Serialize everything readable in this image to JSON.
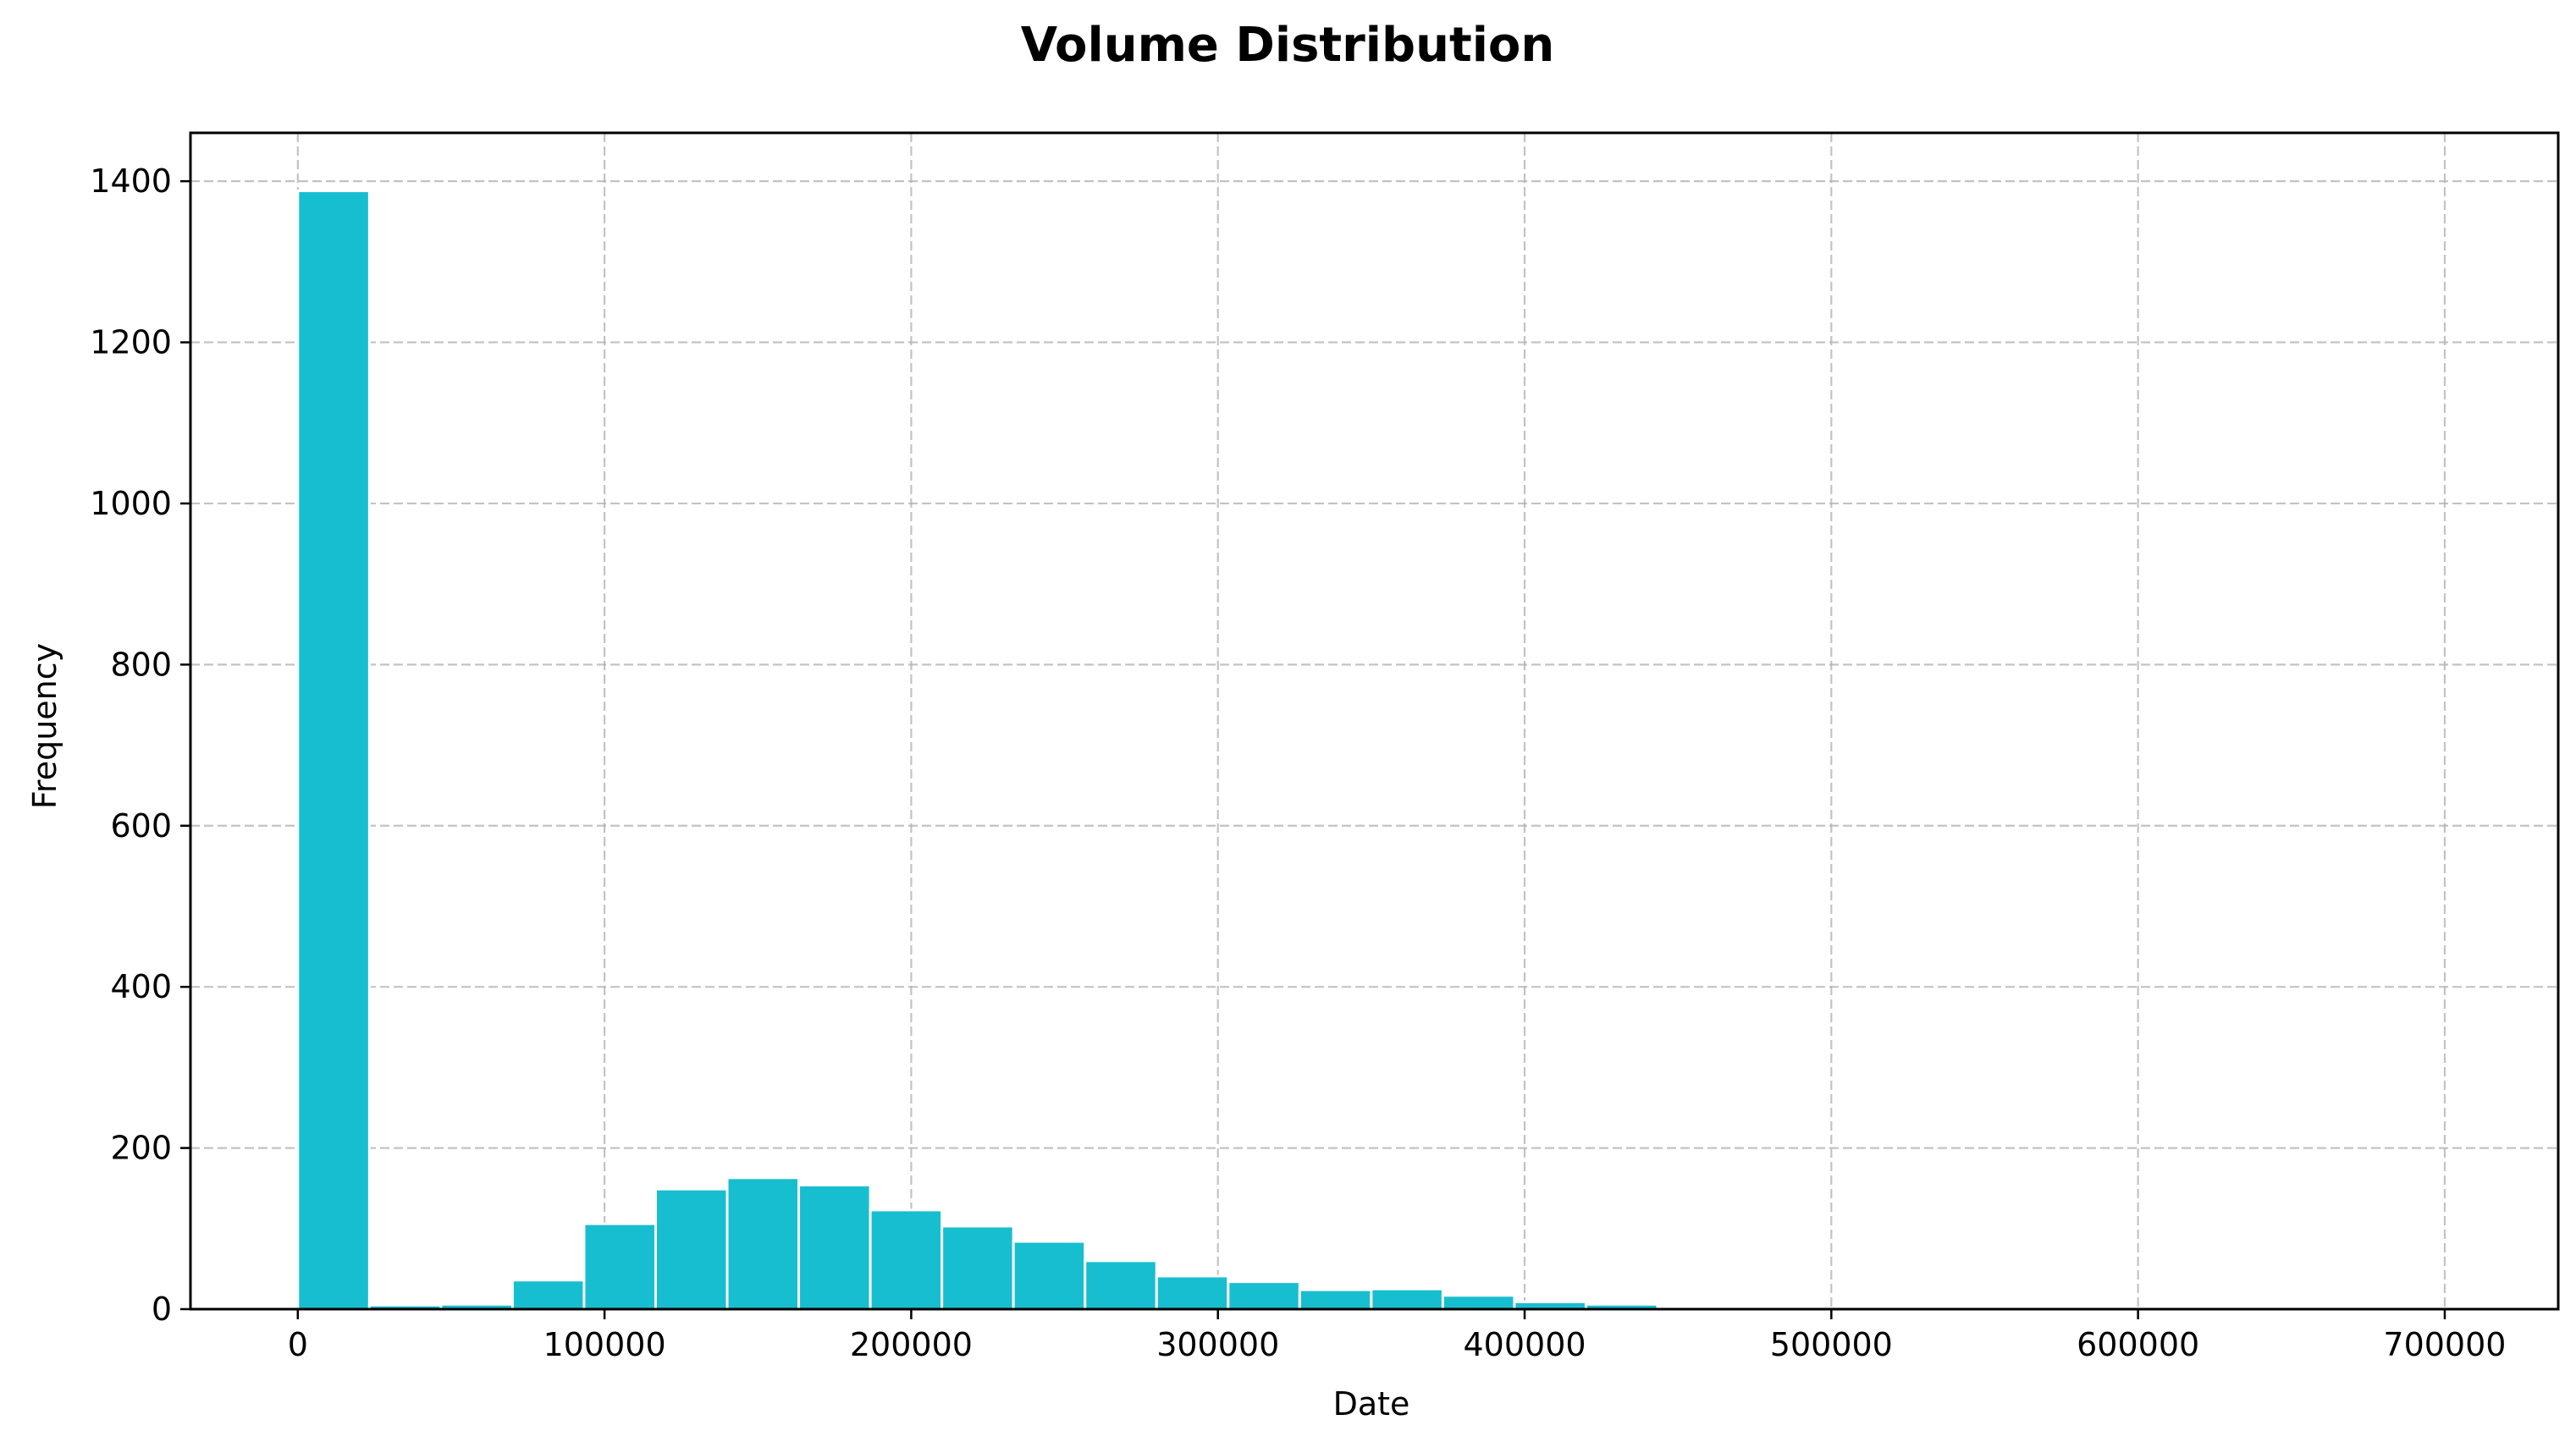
{
  "chart_data": {
    "type": "bar",
    "subtype": "histogram",
    "title": "Volume Distribution",
    "xlabel": "Date",
    "ylabel": "Frequency",
    "xlim": [
      -35000,
      737000
    ],
    "ylim": [
      0,
      1460
    ],
    "xticks": [
      0,
      100000,
      200000,
      300000,
      400000,
      500000,
      600000,
      700000
    ],
    "yticks": [
      0,
      200,
      400,
      600,
      800,
      1000,
      1200,
      1400
    ],
    "grid": true,
    "bar_color": "#17becf",
    "bin_width": 23333,
    "bins": [
      {
        "x0": 0,
        "count": 1388
      },
      {
        "x0": 23333,
        "count": 5
      },
      {
        "x0": 46667,
        "count": 6
      },
      {
        "x0": 70000,
        "count": 36
      },
      {
        "x0": 93333,
        "count": 106
      },
      {
        "x0": 116667,
        "count": 149
      },
      {
        "x0": 140000,
        "count": 163
      },
      {
        "x0": 163333,
        "count": 154
      },
      {
        "x0": 186667,
        "count": 123
      },
      {
        "x0": 210000,
        "count": 103
      },
      {
        "x0": 233333,
        "count": 84
      },
      {
        "x0": 256667,
        "count": 60
      },
      {
        "x0": 280000,
        "count": 41
      },
      {
        "x0": 303333,
        "count": 34
      },
      {
        "x0": 326667,
        "count": 24
      },
      {
        "x0": 350000,
        "count": 25
      },
      {
        "x0": 373333,
        "count": 17
      },
      {
        "x0": 396667,
        "count": 9
      },
      {
        "x0": 420000,
        "count": 6
      },
      {
        "x0": 443333,
        "count": 2
      },
      {
        "x0": 466667,
        "count": 1
      },
      {
        "x0": 490000,
        "count": 0
      },
      {
        "x0": 513333,
        "count": 0
      },
      {
        "x0": 536667,
        "count": 0
      },
      {
        "x0": 560000,
        "count": 0
      },
      {
        "x0": 583333,
        "count": 0
      },
      {
        "x0": 606667,
        "count": 0
      },
      {
        "x0": 630000,
        "count": 0
      },
      {
        "x0": 653333,
        "count": 0
      },
      {
        "x0": 676667,
        "count": 1
      }
    ]
  }
}
